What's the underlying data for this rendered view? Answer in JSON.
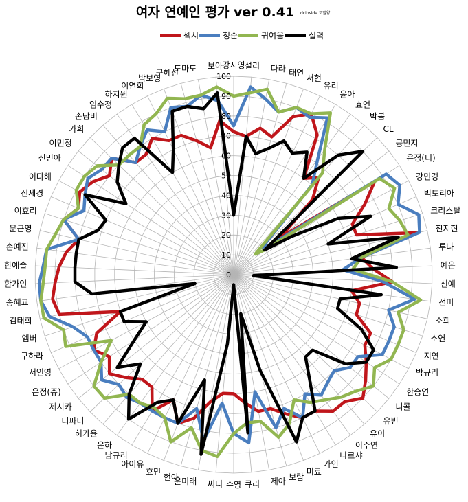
{
  "chart_data": {
    "type": "radar",
    "title": "여자 연예인 평가  ver 0.41",
    "subtitle": "dcinside 코엘양",
    "ylim": [
      0,
      100
    ],
    "tick_labels": [
      "0",
      "10",
      "20",
      "30",
      "40",
      "50",
      "60",
      "70",
      "80",
      "90",
      "100"
    ],
    "legend_position": "top",
    "categories": [
      "강지영",
      "설리",
      "다라",
      "태연",
      "서현",
      "유리",
      "윤아",
      "효연",
      "박봄",
      "CL",
      "공민지",
      "은정(티)",
      "강민경",
      "빅토리아",
      "크리스탈",
      "전지현",
      "루나",
      "예은",
      "선예",
      "선미",
      "소희",
      "소연",
      "지연",
      "박규리",
      "한승연",
      "니콜",
      "유빈",
      "유이",
      "이주연",
      "나르샤",
      "가인",
      "미료",
      "보람",
      "제아",
      "큐리",
      "수영",
      "써니",
      "윤미래",
      "현아",
      "효민",
      "아이유",
      "남규리",
      "윤하",
      "허가윤",
      "티파니",
      "제시카",
      "은정(쥬)",
      "서인영",
      "구하라",
      "엠버",
      "김태희",
      "송혜교",
      "한가인",
      "한예슬",
      "손예진",
      "문근영",
      "이효리",
      "신세경",
      "이다해",
      "신민아",
      "이민정",
      "가희",
      "손담비",
      "임수정",
      "하지원",
      "이연희",
      "박보영",
      "구혜선",
      "도마도",
      "보아"
    ],
    "series": [
      {
        "name": "섹시",
        "color": "#c0161b",
        "values": [
          72,
          70,
          75,
          72,
          85,
          90,
          82,
          60,
          65,
          55,
          30,
          85,
          75,
          65,
          65,
          95,
          65,
          70,
          80,
          60,
          65,
          65,
          75,
          75,
          80,
          85,
          90,
          85,
          85,
          80,
          80,
          75,
          70,
          70,
          65,
          60,
          60,
          65,
          75,
          80,
          70,
          80,
          70,
          70,
          75,
          80,
          75,
          80,
          75,
          60,
          90,
          92,
          90,
          88,
          85,
          80,
          90,
          85,
          88,
          85,
          80,
          85,
          75,
          75,
          80,
          75,
          75,
          70,
          65,
          78
        ]
      },
      {
        "name": "청순",
        "color": "#4a7ebf",
        "values": [
          75,
          95,
          90,
          85,
          90,
          88,
          92,
          72,
          60,
          20,
          25,
          92,
          95,
          90,
          98,
          96,
          65,
          55,
          75,
          92,
          80,
          85,
          85,
          85,
          75,
          75,
          70,
          72,
          75,
          70,
          80,
          72,
          80,
          60,
          85,
          80,
          65,
          85,
          70,
          80,
          80,
          80,
          80,
          82,
          80,
          85,
          80,
          80,
          80,
          85,
          95,
          98,
          98,
          96,
          95,
          80,
          90,
          82,
          85,
          88,
          85,
          85,
          75,
          80,
          85,
          80,
          90,
          88,
          92,
          88
        ]
      },
      {
        "name": "귀여움",
        "color": "#92b651",
        "values": [
          90,
          92,
          95,
          85,
          90,
          90,
          95,
          78,
          68,
          15,
          20,
          88,
          92,
          85,
          88,
          90,
          65,
          60,
          80,
          95,
          85,
          90,
          90,
          90,
          85,
          90,
          85,
          82,
          78,
          75,
          70,
          80,
          85,
          75,
          75,
          80,
          92,
          90,
          80,
          90,
          80,
          78,
          80,
          80,
          90,
          90,
          80,
          70,
          92,
          90,
          98,
          98,
          96,
          95,
          95,
          92,
          90,
          85,
          90,
          90,
          88,
          80,
          80,
          80,
          88,
          90,
          95,
          92,
          92,
          95
        ]
      },
      {
        "name": "실력",
        "color": "#000000",
        "values": [
          30,
          70,
          62,
          66,
          72,
          68,
          72,
          60,
          80,
          90,
          20,
          35,
          60,
          75,
          50,
          85,
          60,
          82,
          10,
          75,
          55,
          55,
          70,
          80,
          80,
          72,
          55,
          55,
          65,
          80,
          80,
          90,
          50,
          20,
          80,
          5,
          35,
          92,
          55,
          80,
          70,
          75,
          90,
          80,
          65,
          75,
          60,
          50,
          60,
          60,
          20,
          72,
          80,
          80,
          80,
          80,
          72,
          70,
          85,
          65,
          75,
          80,
          85,
          85,
          60,
          70,
          88,
          88,
          85,
          92
        ]
      }
    ]
  }
}
